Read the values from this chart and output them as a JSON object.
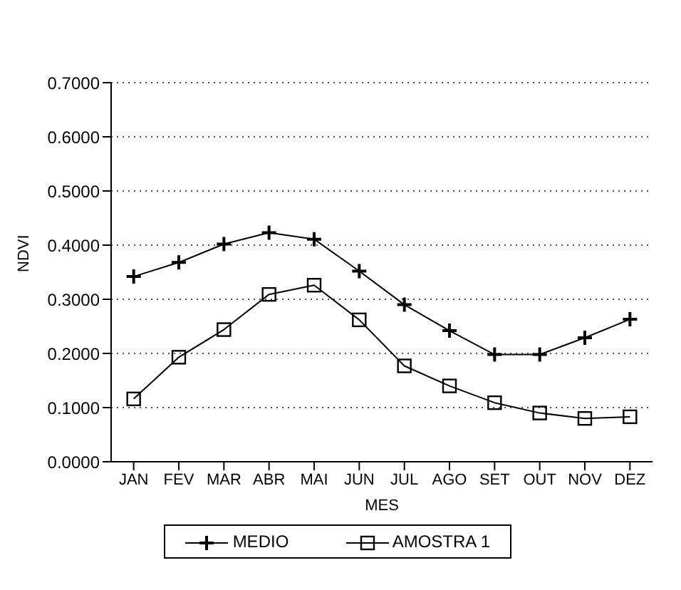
{
  "chart_data": {
    "type": "line",
    "xlabel": "MES",
    "ylabel": "NDVI",
    "categories": [
      "JAN",
      "FEV",
      "MAR",
      "ABR",
      "MAI",
      "JUN",
      "JUL",
      "AGO",
      "SET",
      "OUT",
      "NOV",
      "DEZ"
    ],
    "series": [
      {
        "name": "MEDIO",
        "color": "#000000",
        "marker": "cross",
        "values": [
          0.342,
          0.368,
          0.402,
          0.423,
          0.411,
          0.352,
          0.29,
          0.242,
          0.198,
          0.198,
          0.229,
          0.263
        ]
      },
      {
        "name": "AMOSTRA 1",
        "color": "#000000",
        "marker": "square",
        "values": [
          0.116,
          0.193,
          0.244,
          0.309,
          0.326,
          0.262,
          0.177,
          0.14,
          0.109,
          0.09,
          0.08,
          0.083
        ]
      }
    ],
    "ylim": [
      0,
      0.7
    ],
    "yticks": [
      {
        "value": 0,
        "label": "0.0000"
      },
      {
        "value": 0.1,
        "label": "0.1000"
      },
      {
        "value": 0.2,
        "label": "0.2000"
      },
      {
        "value": 0.3,
        "label": "0.3000"
      },
      {
        "value": 0.4,
        "label": "0.4000"
      },
      {
        "value": 0.5,
        "label": "0.5000"
      },
      {
        "value": 0.6,
        "label": "0.6000"
      },
      {
        "value": 0.7,
        "label": "0.7000"
      }
    ],
    "grid": "y",
    "legend": "bottom"
  }
}
